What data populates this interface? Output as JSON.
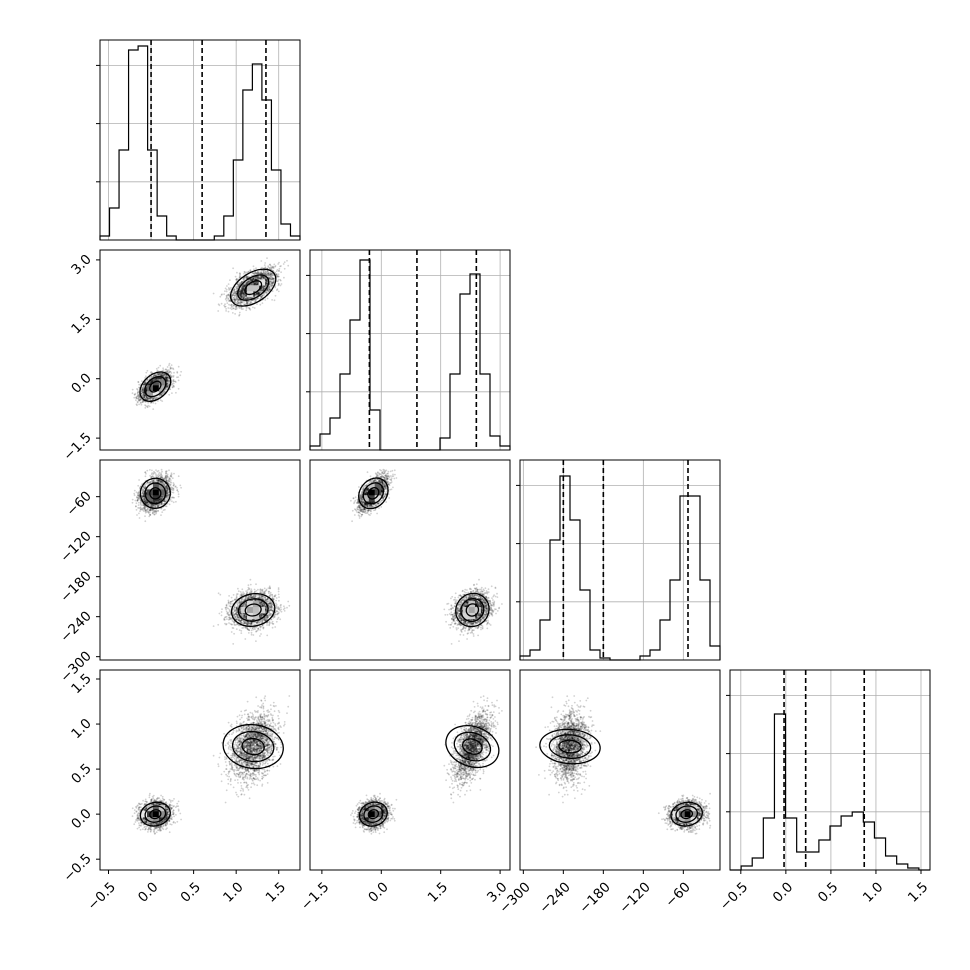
{
  "chart_data": {
    "type": "corner",
    "grid": true,
    "n_params": 4,
    "params": [
      {
        "index": 0,
        "range": [
          -0.6,
          1.75
        ],
        "ticks": [
          "-0.5",
          "0.0",
          "0.5",
          "1.0",
          "1.5"
        ],
        "tick_values": [
          -0.5,
          0.0,
          0.5,
          1.0,
          1.5
        ],
        "quantiles": [
          0.0,
          0.6,
          1.35
        ],
        "hist": [
          0.02,
          0.16,
          0.45,
          0.95,
          0.97,
          0.45,
          0.12,
          0.02,
          0.0,
          0.0,
          0.0,
          0.0,
          0.02,
          0.12,
          0.4,
          0.75,
          0.88,
          0.7,
          0.35,
          0.08,
          0.02
        ]
      },
      {
        "index": 1,
        "range": [
          -1.8,
          3.25
        ],
        "ticks": [
          "-1.5",
          "0.0",
          "1.5",
          "3.0"
        ],
        "tick_values": [
          -1.5,
          0.0,
          1.5,
          3.0
        ],
        "quantiles": [
          -0.3,
          0.9,
          2.4
        ],
        "hist": [
          0.02,
          0.08,
          0.16,
          0.38,
          0.65,
          0.95,
          0.2,
          0.0,
          0.0,
          0.0,
          0.0,
          0.0,
          0.0,
          0.06,
          0.38,
          0.78,
          0.88,
          0.38,
          0.07,
          0.02
        ]
      },
      {
        "index": 2,
        "range": [
          -305,
          -5
        ],
        "ticks": [
          "-300",
          "-240",
          "-180",
          "-120",
          "-60"
        ],
        "tick_values": [
          -300,
          -240,
          -180,
          -120,
          -60
        ],
        "quantiles": [
          -240,
          -180,
          -53
        ],
        "hist": [
          0.02,
          0.05,
          0.2,
          0.6,
          0.92,
          0.7,
          0.35,
          0.05,
          0.01,
          0.0,
          0.0,
          0.0,
          0.02,
          0.05,
          0.2,
          0.4,
          0.82,
          0.82,
          0.4,
          0.07
        ]
      },
      {
        "index": 3,
        "range": [
          -0.62,
          1.6
        ],
        "ticks": [
          "-0.5",
          "0.0",
          "0.5",
          "1.0",
          "1.5"
        ],
        "tick_values": [
          -0.5,
          0.0,
          0.5,
          1.0,
          1.5
        ],
        "quantiles": [
          -0.02,
          0.22,
          0.87
        ],
        "hist": [
          0.0,
          0.02,
          0.06,
          0.26,
          0.78,
          0.26,
          0.09,
          0.09,
          0.15,
          0.22,
          0.27,
          0.29,
          0.24,
          0.16,
          0.07,
          0.03,
          0.01,
          0.0
        ]
      }
    ],
    "modes": [
      {
        "center": [
          0.05,
          -0.2,
          -55,
          0.0
        ],
        "std": [
          0.09,
          0.18,
          12,
          0.07
        ],
        "n": 2200
      },
      {
        "center": [
          1.2,
          2.3,
          -230,
          0.75
        ],
        "std": [
          0.13,
          0.22,
          13,
          0.18
        ],
        "n": 2200
      }
    ],
    "density_levels": [
      0.4,
      0.8,
      1.0
    ]
  }
}
